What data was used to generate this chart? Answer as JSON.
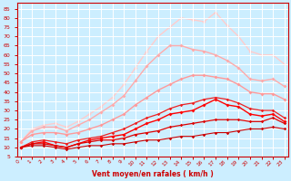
{
  "xlabel": "Vent moyen/en rafales ( km/h )",
  "bg_color": "#cceeff",
  "grid_color": "#ffffff",
  "x_values": [
    0,
    1,
    2,
    3,
    4,
    5,
    6,
    7,
    8,
    9,
    10,
    11,
    12,
    13,
    14,
    15,
    16,
    17,
    18,
    19,
    20,
    21,
    22,
    23
  ],
  "series": [
    {
      "y": [
        10,
        11,
        11,
        10,
        9,
        10,
        11,
        11,
        12,
        12,
        13,
        14,
        14,
        15,
        16,
        16,
        17,
        18,
        18,
        19,
        20,
        20,
        21,
        20
      ],
      "color": "#cc0000",
      "marker": "D",
      "lw": 0.8,
      "ms": 1.8,
      "zorder": 5
    },
    {
      "y": [
        10,
        12,
        12,
        11,
        10,
        12,
        13,
        14,
        14,
        15,
        17,
        18,
        19,
        21,
        22,
        23,
        24,
        25,
        25,
        25,
        24,
        24,
        26,
        23
      ],
      "color": "#dd0000",
      "marker": "D",
      "lw": 0.9,
      "ms": 1.8,
      "zorder": 5
    },
    {
      "y": [
        10,
        12,
        13,
        11,
        10,
        12,
        14,
        15,
        16,
        17,
        20,
        23,
        25,
        28,
        29,
        30,
        33,
        36,
        33,
        32,
        28,
        27,
        28,
        24
      ],
      "color": "#ff0000",
      "marker": "D",
      "lw": 1.0,
      "ms": 2.0,
      "zorder": 4
    },
    {
      "y": [
        10,
        13,
        14,
        13,
        12,
        14,
        15,
        16,
        18,
        20,
        23,
        26,
        28,
        31,
        33,
        34,
        36,
        37,
        36,
        34,
        31,
        30,
        30,
        26
      ],
      "color": "#ee2222",
      "marker": "D",
      "lw": 0.9,
      "ms": 1.8,
      "zorder": 4
    },
    {
      "y": [
        13,
        17,
        18,
        18,
        17,
        18,
        20,
        22,
        25,
        28,
        33,
        37,
        41,
        44,
        47,
        49,
        49,
        48,
        47,
        44,
        40,
        39,
        39,
        36
      ],
      "color": "#ff9999",
      "marker": "D",
      "lw": 1.0,
      "ms": 2.0,
      "zorder": 3
    },
    {
      "y": [
        13,
        19,
        21,
        21,
        19,
        22,
        25,
        29,
        33,
        38,
        46,
        54,
        60,
        65,
        65,
        63,
        62,
        60,
        57,
        53,
        47,
        46,
        47,
        43
      ],
      "color": "#ffaaaa",
      "marker": "D",
      "lw": 1.0,
      "ms": 2.0,
      "zorder": 2
    },
    {
      "y": [
        13,
        20,
        22,
        23,
        21,
        24,
        28,
        32,
        37,
        44,
        53,
        62,
        70,
        75,
        80,
        79,
        78,
        83,
        76,
        70,
        62,
        60,
        60,
        55
      ],
      "color": "#ffcccc",
      "marker": "D",
      "lw": 1.0,
      "ms": 2.0,
      "zorder": 1
    }
  ],
  "yticks": [
    5,
    10,
    15,
    20,
    25,
    30,
    35,
    40,
    45,
    50,
    55,
    60,
    65,
    70,
    75,
    80,
    85
  ],
  "xticks": [
    0,
    1,
    2,
    3,
    4,
    5,
    6,
    7,
    8,
    9,
    10,
    11,
    12,
    13,
    14,
    15,
    16,
    17,
    18,
    19,
    20,
    21,
    22,
    23
  ],
  "ylim": [
    5,
    88
  ],
  "xlim": [
    -0.3,
    23.3
  ],
  "xlabel_color": "#cc0000",
  "tick_color": "#cc0000",
  "axis_color": "#cc0000"
}
